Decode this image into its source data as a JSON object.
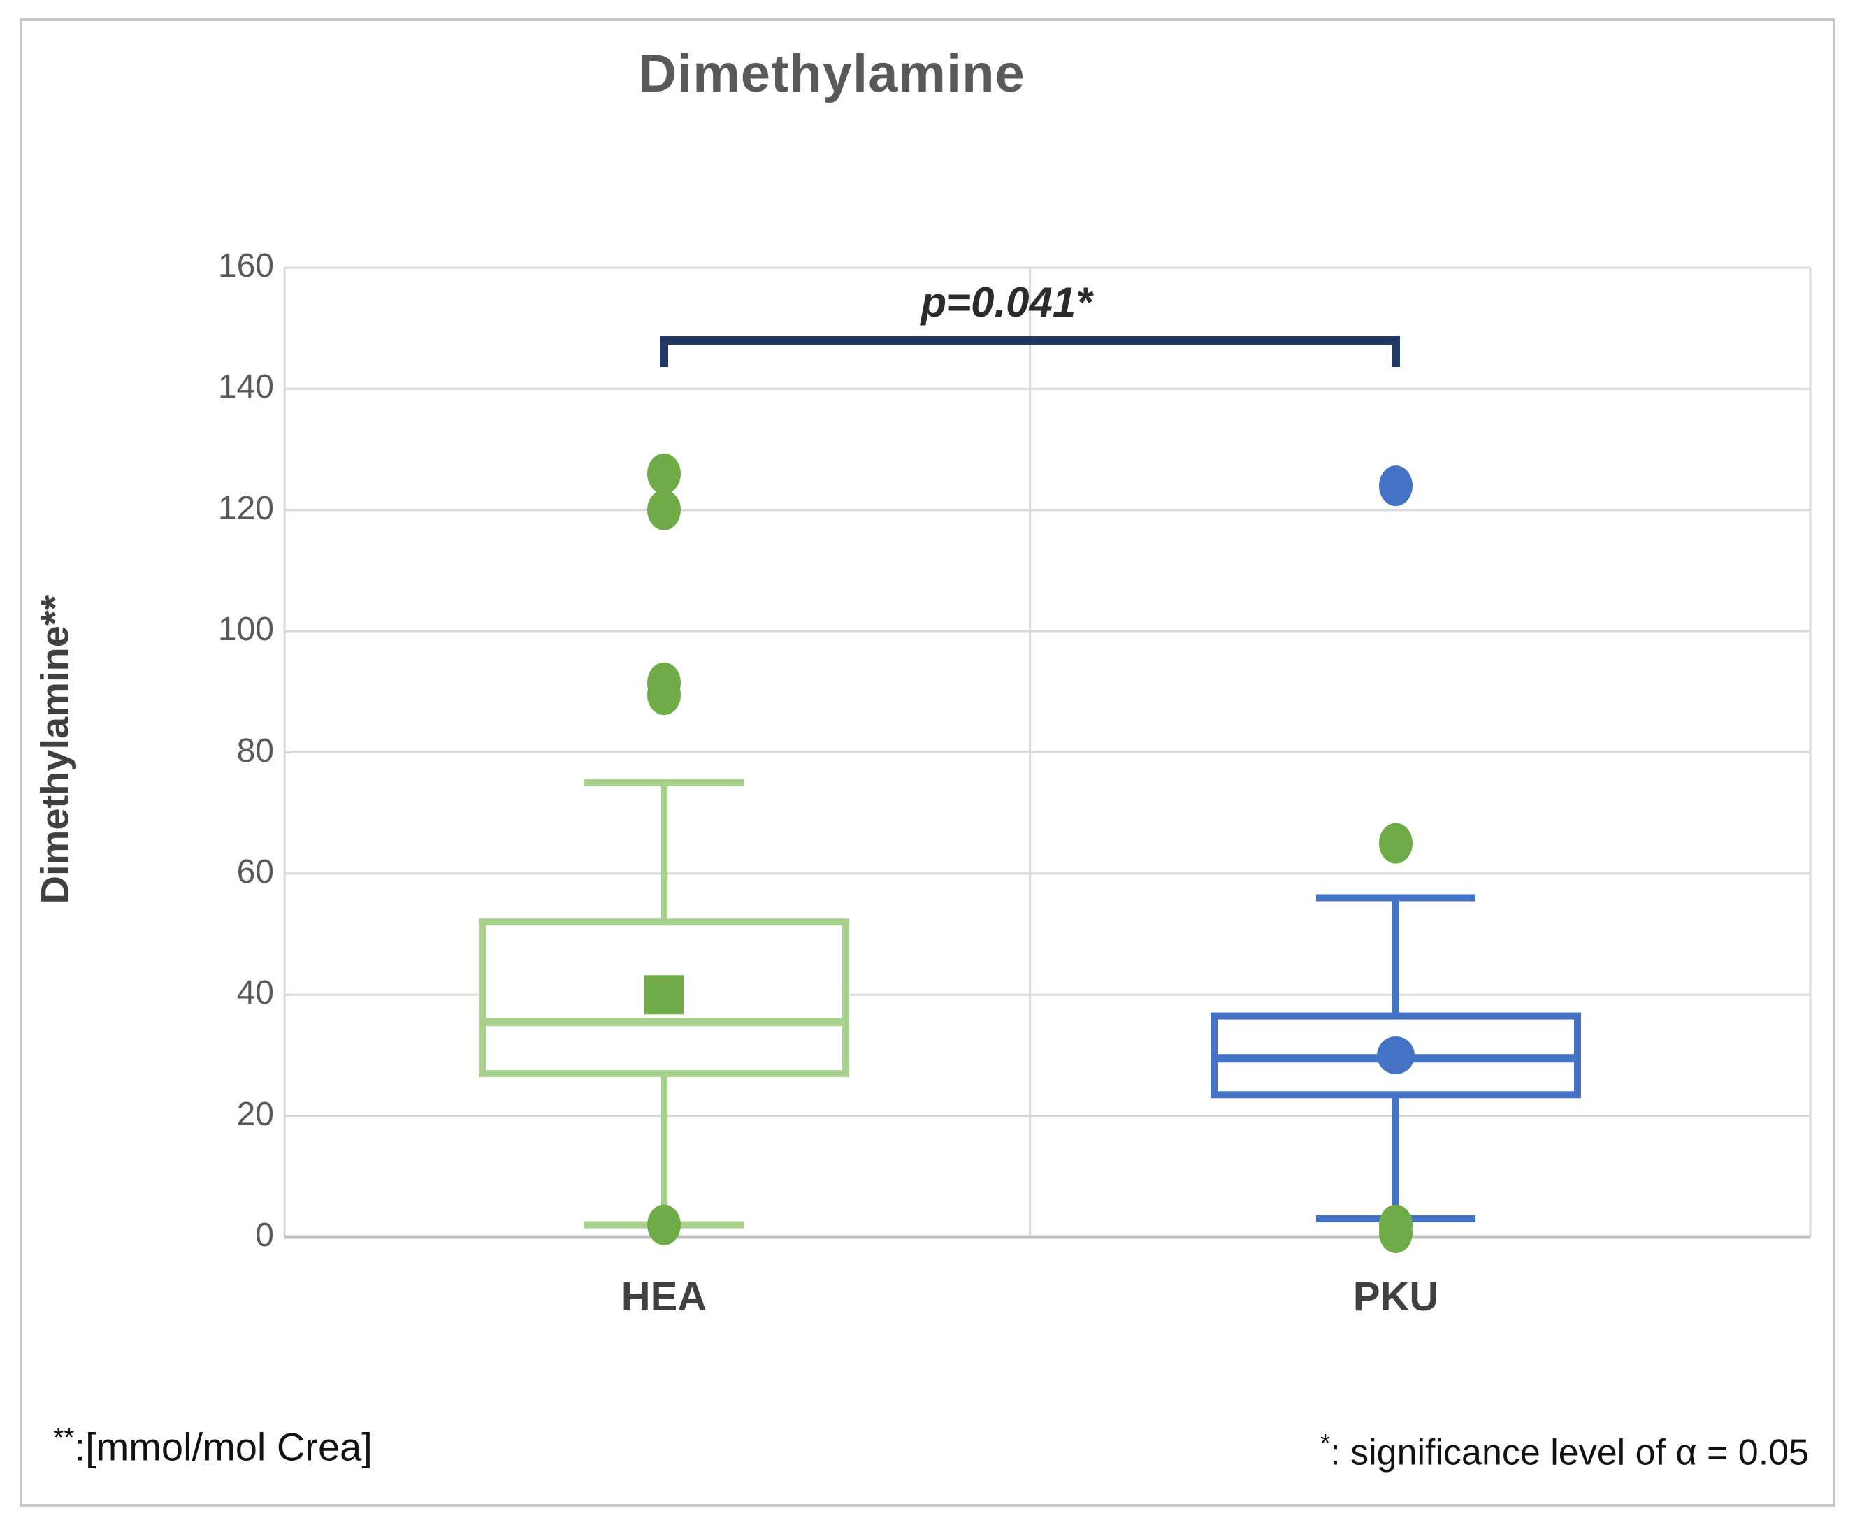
{
  "chart_data": {
    "type": "boxplot",
    "title": "Dimethylamine",
    "ylabel": "Dimethylamine**",
    "xlabel": "",
    "ylim": [
      0,
      160
    ],
    "yticks": [
      0,
      20,
      40,
      60,
      80,
      100,
      120,
      140,
      160
    ],
    "grid": true,
    "categories": [
      "HEA",
      "PKU"
    ],
    "series": [
      {
        "name": "HEA",
        "line_color": "#a9d18e",
        "marker_color": "#6fac47",
        "whisker_low": 2,
        "q1": 27,
        "median": 35.5,
        "q3": 52,
        "whisker_high": 75,
        "mean": 40,
        "mean_marker": "square",
        "outliers": [
          {
            "value": 126,
            "color": "#6fac47"
          },
          {
            "value": 120,
            "color": "#6fac47"
          },
          {
            "value": 91.5,
            "color": "#6fac47"
          },
          {
            "value": 89.5,
            "color": "#6fac47"
          },
          {
            "value": 2,
            "color": "#6fac47"
          }
        ]
      },
      {
        "name": "PKU",
        "line_color": "#4472c4",
        "marker_color": "#4472c4",
        "whisker_low": 3,
        "q1": 23.5,
        "median": 29.5,
        "q3": 36.5,
        "whisker_high": 56,
        "mean": 30,
        "mean_marker": "circle",
        "outliers": [
          {
            "value": 124,
            "color": "#4472c4"
          },
          {
            "value": 65,
            "color": "#6fac47"
          },
          {
            "value": 2,
            "color": "#6fac47"
          },
          {
            "value": 0.7,
            "color": "#6fac47"
          }
        ]
      }
    ],
    "annotation": {
      "text": "p=0.041*",
      "bracket_value": 148,
      "bracket_color": "#1f3864",
      "between": [
        "HEA",
        "PKU"
      ]
    },
    "colors": {
      "gridline": "#d9d9d9",
      "axis_line": "#bfbfbf",
      "tick_text": "#595959",
      "label_text": "#404040"
    }
  },
  "footnotes": {
    "left_sup": "**",
    "left_text": ":[mmol/mol Crea]",
    "right_sup": "*",
    "right_text": ": significance level of α = 0.05"
  }
}
